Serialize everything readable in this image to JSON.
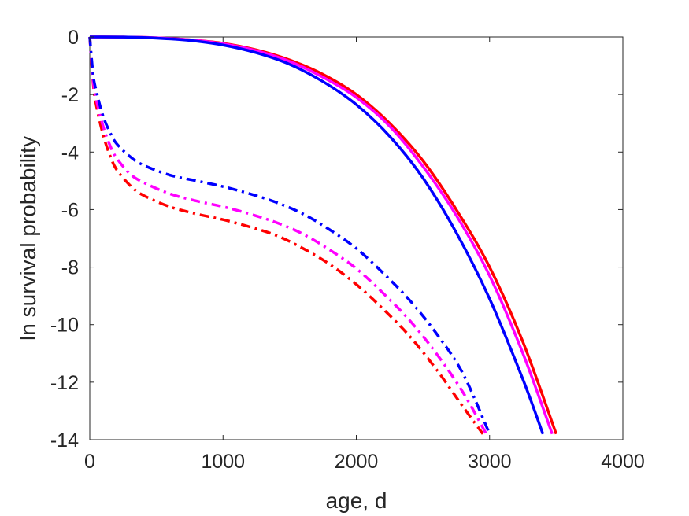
{
  "chart_data": {
    "type": "line",
    "title": "",
    "xlabel": "age, d",
    "ylabel": "ln survival probability",
    "xlim": [
      0,
      4000
    ],
    "ylim": [
      -14,
      0
    ],
    "xticks": [
      0,
      1000,
      2000,
      3000,
      4000
    ],
    "yticks": [
      0,
      -2,
      -4,
      -6,
      -8,
      -10,
      -12,
      -14
    ],
    "grid": false,
    "legend": "none",
    "series": [
      {
        "style": "solid",
        "color": "#ff0000",
        "x": [
          0,
          250,
          500,
          750,
          1000,
          1250,
          1500,
          1750,
          2000,
          2250,
          2500,
          2750,
          3000,
          3250,
          3500
        ],
        "y": [
          0,
          -0.003,
          -0.03,
          -0.1,
          -0.22,
          -0.45,
          -0.8,
          -1.3,
          -2.0,
          -3.0,
          -4.3,
          -6.0,
          -8.0,
          -10.6,
          -13.8
        ]
      },
      {
        "style": "solid",
        "color": "#ff00ff",
        "x": [
          0,
          250,
          500,
          750,
          1000,
          1250,
          1500,
          1750,
          2000,
          2250,
          2500,
          2750,
          3000,
          3250,
          3470
        ],
        "y": [
          0,
          -0.003,
          -0.03,
          -0.1,
          -0.24,
          -0.48,
          -0.85,
          -1.4,
          -2.1,
          -3.1,
          -4.5,
          -6.2,
          -8.3,
          -11.0,
          -13.8
        ]
      },
      {
        "style": "solid",
        "color": "#0000ff",
        "x": [
          0,
          250,
          500,
          750,
          1000,
          1250,
          1500,
          1750,
          2000,
          2250,
          2500,
          2750,
          3000,
          3250,
          3400
        ],
        "y": [
          0,
          -0.004,
          -0.04,
          -0.12,
          -0.28,
          -0.55,
          -0.95,
          -1.55,
          -2.35,
          -3.45,
          -4.9,
          -6.8,
          -9.1,
          -11.9,
          -13.8
        ]
      },
      {
        "style": "dashdot",
        "color": "#ff0000",
        "x": [
          0,
          25,
          50,
          100,
          150,
          200,
          300,
          400,
          600,
          800,
          1000,
          1200,
          1400,
          1600,
          1800,
          2000,
          2200,
          2400,
          2600,
          2800,
          2950
        ],
        "y": [
          0,
          -1.6,
          -2.4,
          -3.4,
          -4.1,
          -4.6,
          -5.15,
          -5.5,
          -5.9,
          -6.15,
          -6.35,
          -6.6,
          -6.9,
          -7.35,
          -7.9,
          -8.6,
          -9.45,
          -10.4,
          -11.55,
          -12.85,
          -13.8
        ]
      },
      {
        "style": "dashdot",
        "color": "#ff00ff",
        "x": [
          0,
          25,
          50,
          100,
          150,
          200,
          300,
          400,
          600,
          800,
          1000,
          1200,
          1400,
          1600,
          1800,
          2000,
          2200,
          2400,
          2600,
          2800,
          2975
        ],
        "y": [
          0,
          -1.5,
          -2.2,
          -3.1,
          -3.75,
          -4.2,
          -4.75,
          -5.05,
          -5.45,
          -5.7,
          -5.9,
          -6.15,
          -6.45,
          -6.85,
          -7.4,
          -8.05,
          -8.9,
          -9.85,
          -11.0,
          -12.35,
          -13.8
        ]
      },
      {
        "style": "dashdot",
        "color": "#0000ff",
        "x": [
          0,
          25,
          50,
          100,
          150,
          200,
          300,
          400,
          600,
          800,
          1000,
          1200,
          1400,
          1600,
          1800,
          2000,
          2200,
          2400,
          2600,
          2800,
          3000
        ],
        "y": [
          0,
          -1.3,
          -1.9,
          -2.75,
          -3.3,
          -3.7,
          -4.15,
          -4.45,
          -4.8,
          -5.0,
          -5.2,
          -5.45,
          -5.75,
          -6.15,
          -6.7,
          -7.35,
          -8.2,
          -9.15,
          -10.3,
          -11.7,
          -13.8
        ]
      }
    ]
  }
}
